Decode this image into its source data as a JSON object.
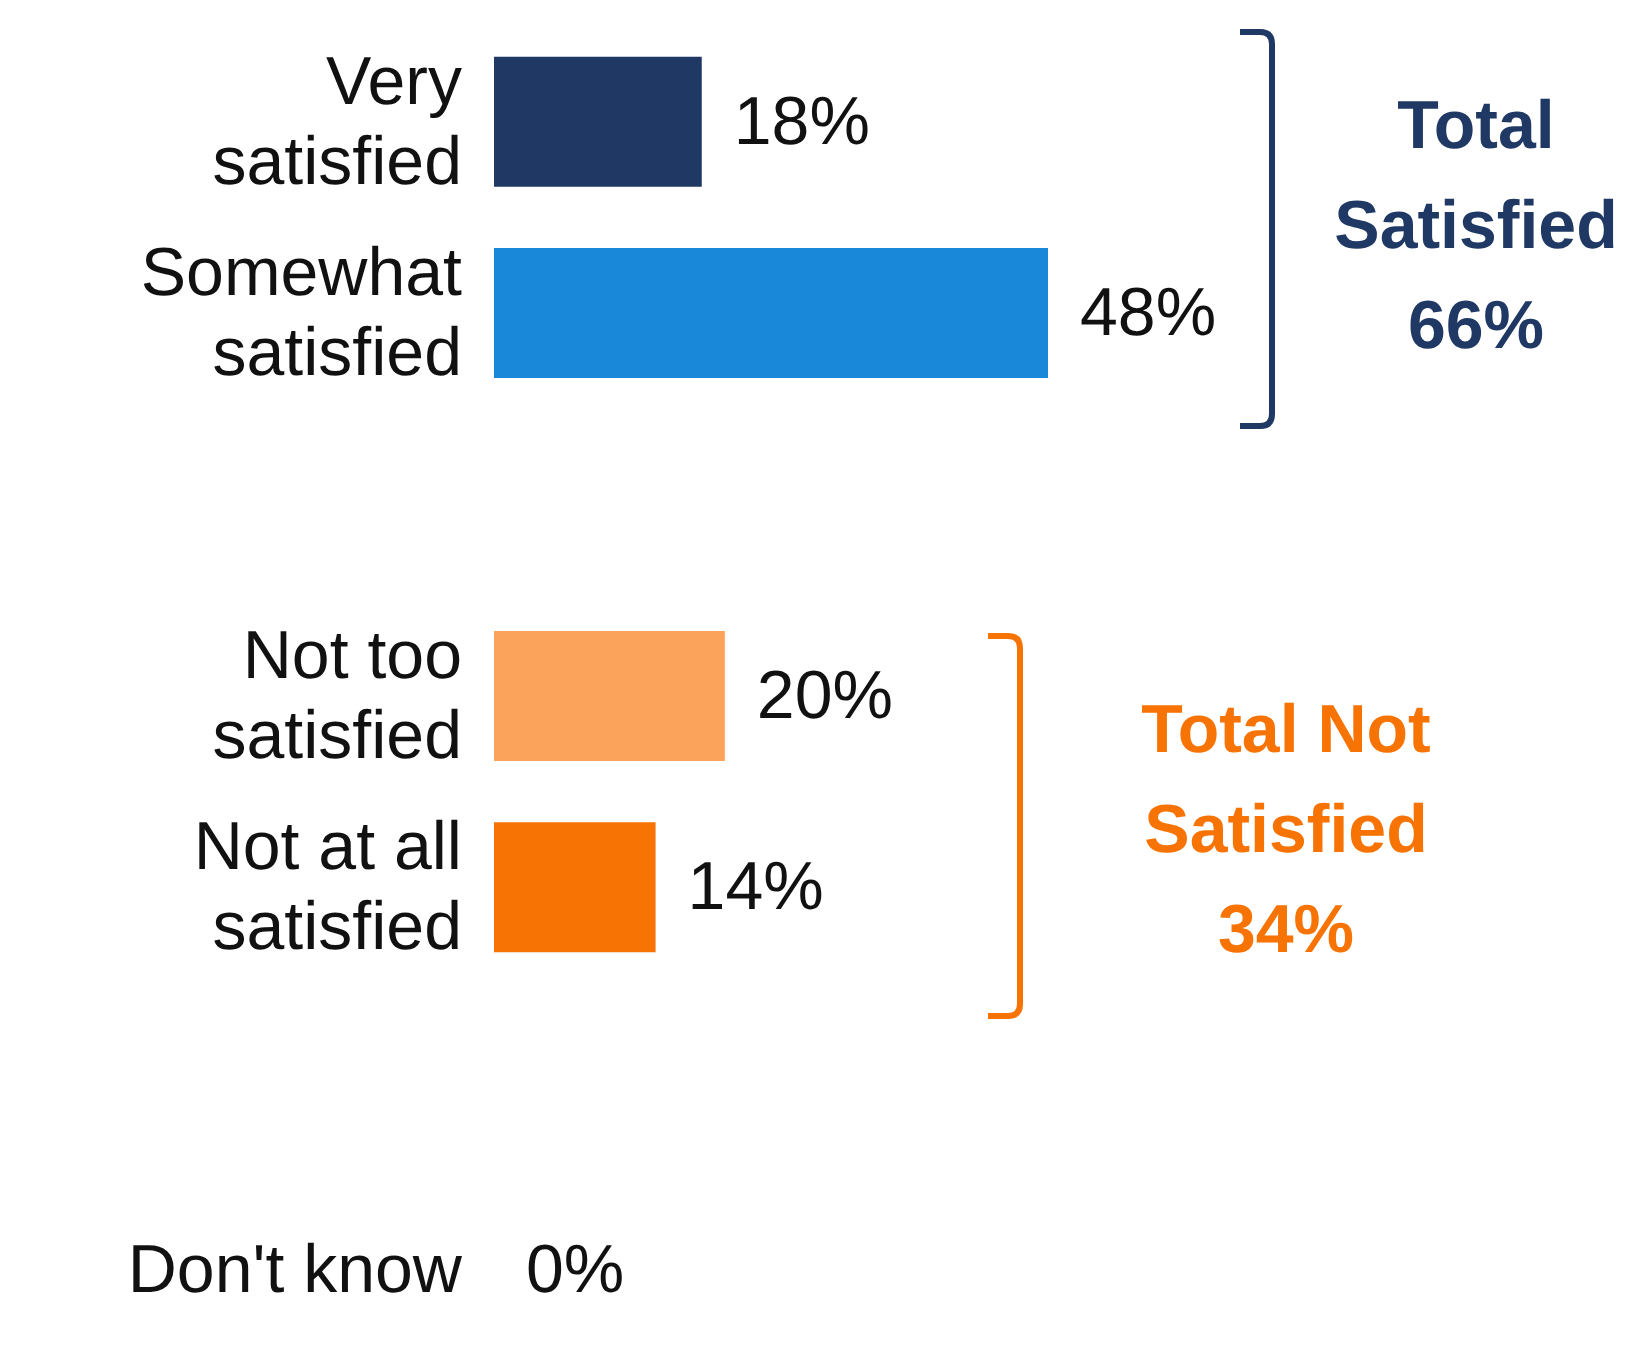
{
  "chart_data": {
    "type": "bar",
    "orientation": "horizontal",
    "categories": [
      "Very satisfied",
      "Somewhat satisfied",
      null,
      "Not too satisfied",
      "Not at all satisfied",
      null,
      "Don't know"
    ],
    "values": [
      18,
      48,
      null,
      20,
      14,
      null,
      0
    ],
    "colors": [
      "#1f3864",
      "#1a88d8",
      null,
      "#fba35a",
      "#f77303",
      null,
      "#7f7f7f"
    ],
    "value_labels": [
      "18%",
      "48%",
      null,
      "20%",
      "14%",
      null,
      "0%"
    ],
    "tick_labels": "y",
    "annotations": [
      "Total\nSatisfied\n66%",
      "Total Not\nSatisfied\n34%"
    ]
  }
}
